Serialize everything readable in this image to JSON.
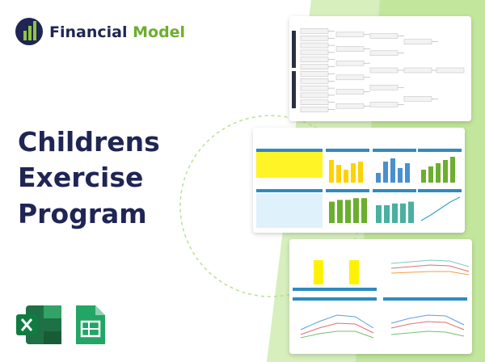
{
  "logo": {
    "word1": "Financial",
    "word2": "Model"
  },
  "title": {
    "lines": [
      "Childrens",
      "Exercise",
      "Program"
    ]
  }
}
